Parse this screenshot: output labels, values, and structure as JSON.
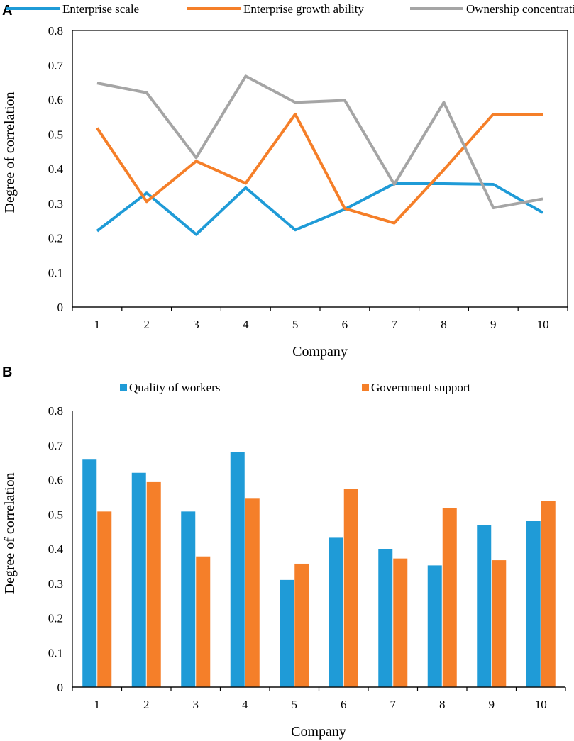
{
  "chart_data": [
    {
      "panel": "A",
      "type": "line",
      "categories": [
        "1",
        "2",
        "3",
        "4",
        "5",
        "6",
        "7",
        "8",
        "9",
        "10"
      ],
      "series": [
        {
          "name": "Enterprise scale",
          "color": "#1f9bd7",
          "values": [
            0.22,
            0.33,
            0.21,
            0.345,
            0.223,
            0.283,
            0.357,
            0.357,
            0.355,
            0.273
          ]
        },
        {
          "name": "Enterprise growth ability",
          "color": "#f57f29",
          "values": [
            0.518,
            0.305,
            0.422,
            0.358,
            0.558,
            0.285,
            0.243,
            0.397,
            0.558,
            0.558
          ]
        },
        {
          "name": "Ownership concentration",
          "color": "#a5a5a5",
          "values": [
            0.648,
            0.62,
            0.432,
            0.668,
            0.592,
            0.598,
            0.355,
            0.592,
            0.287,
            0.313
          ]
        }
      ],
      "xlabel": "Company",
      "ylabel": "Degree of correlation",
      "ylim": [
        0,
        0.8
      ],
      "yticks": [
        "0",
        "0.1",
        "0.2",
        "0.3",
        "0.4",
        "0.5",
        "0.6",
        "0.7",
        "0.8"
      ],
      "legend_position": "top"
    },
    {
      "panel": "B",
      "type": "bar",
      "categories": [
        "1",
        "2",
        "3",
        "4",
        "5",
        "6",
        "7",
        "8",
        "9",
        "10"
      ],
      "series": [
        {
          "name": "Quality of workers",
          "color": "#1f9bd7",
          "values": [
            0.658,
            0.62,
            0.508,
            0.68,
            0.31,
            0.432,
            0.4,
            0.352,
            0.468,
            0.48
          ]
        },
        {
          "name": "Government support",
          "color": "#f57f29",
          "values": [
            0.508,
            0.593,
            0.378,
            0.545,
            0.357,
            0.573,
            0.372,
            0.517,
            0.367,
            0.538
          ]
        }
      ],
      "xlabel": "Company",
      "ylabel": "Degree of correlation",
      "ylim": [
        0,
        0.8
      ],
      "yticks": [
        "0",
        "0.1",
        "0.2",
        "0.3",
        "0.4",
        "0.5",
        "0.6",
        "0.7",
        "0.8"
      ],
      "legend_position": "top"
    }
  ]
}
